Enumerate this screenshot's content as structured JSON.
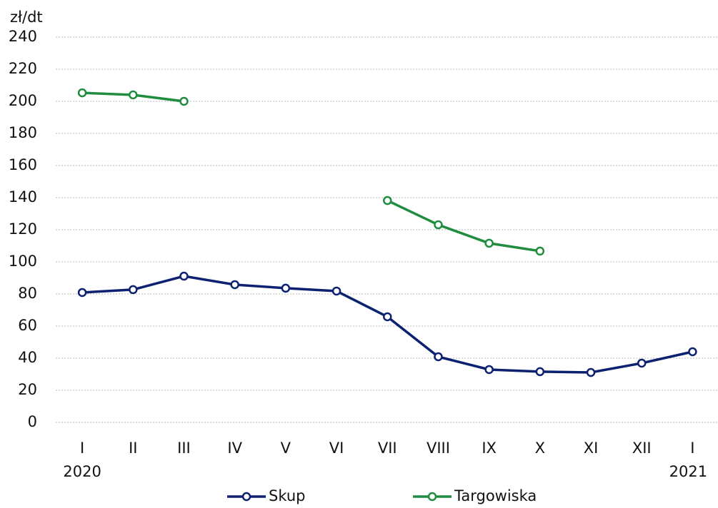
{
  "chart_data": {
    "type": "line",
    "y_unit": "zł/dt",
    "categories": [
      "I",
      "II",
      "III",
      "IV",
      "V",
      "VI",
      "VII",
      "VIII",
      "IX",
      "X",
      "XI",
      "XII",
      "I"
    ],
    "year_labels": [
      "2020",
      "2021"
    ],
    "series": [
      {
        "name": "Skup",
        "color": "#0c2170",
        "values": [
          80.9,
          82.7,
          91.1,
          85.8,
          83.6,
          81.8,
          65.8,
          40.9,
          32.9,
          31.6,
          31.1,
          36.9,
          44
        ]
      },
      {
        "name": "Targowiska",
        "color": "#1f8c3f",
        "values": [
          205.3,
          204,
          200,
          null,
          null,
          null,
          138.2,
          123.1,
          111.6,
          106.7,
          null,
          null,
          null
        ]
      }
    ],
    "ylim": [
      0,
      240
    ],
    "yticks": [
      0,
      20,
      40,
      60,
      80,
      100,
      120,
      140,
      160,
      180,
      200,
      220,
      240
    ],
    "grid": true
  }
}
